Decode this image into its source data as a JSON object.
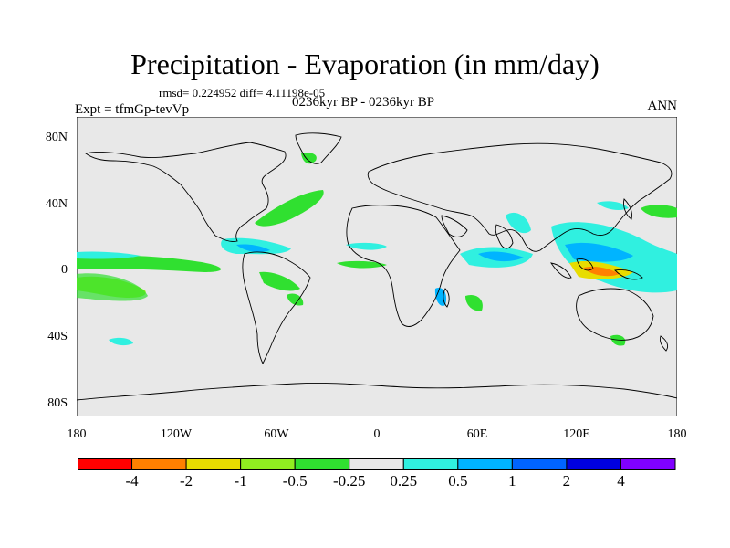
{
  "title": "Precipitation - Evaporation (in mm/day)",
  "stats": "rmsd= 0.224952 diff= 4.11198e-05",
  "experiment": "Expt = tfmGp-tevVp",
  "period": "0236kyr BP - 0236kyr BP",
  "season": "ANN",
  "lat_labels": [
    "80N",
    "40N",
    "0",
    "40S",
    "80S"
  ],
  "lon_labels": [
    "180",
    "120W",
    "60W",
    "0",
    "60E",
    "120E",
    "180"
  ],
  "colorbar": {
    "colors": [
      "#ff0000",
      "#ff8000",
      "#e8dc00",
      "#90ee20",
      "#30e030",
      "#e8e8e8",
      "#30f0e0",
      "#00b4ff",
      "#0064ff",
      "#0000e0",
      "#8000ff"
    ],
    "labels": [
      "-4",
      "-2",
      "-1",
      "-0.5",
      "-0.25",
      "0.25",
      "0.5",
      "1",
      "2",
      "4"
    ]
  },
  "map_colors": {
    "ocean": "#e8e8e8",
    "coast": "#000000"
  }
}
